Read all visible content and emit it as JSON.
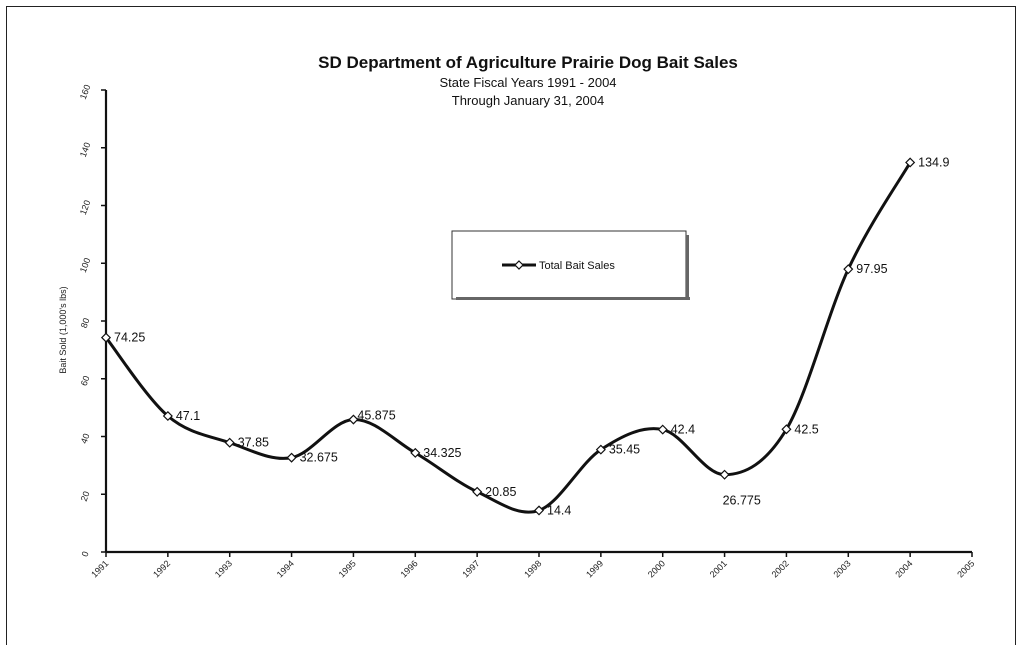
{
  "chart_data": {
    "type": "line",
    "title": "SD Department of Agriculture Prairie Dog Bait Sales",
    "subtitle_lines": [
      "State Fiscal Years 1991 - 2004",
      "Through January 31, 2004"
    ],
    "xlabel": "",
    "ylabel": "Bait Sold (1,000's lbs)",
    "x_ticks": [
      "1991",
      "1992",
      "1993",
      "1994",
      "1995",
      "1996",
      "1997",
      "1998",
      "1999",
      "2000",
      "2001",
      "2002",
      "2003",
      "2004",
      "2005"
    ],
    "y_ticks": [
      "0",
      "20",
      "40",
      "60",
      "80",
      "100",
      "120",
      "140",
      "160"
    ],
    "ylim": [
      0,
      160
    ],
    "grid": false,
    "legend": {
      "placement": "center",
      "entries": [
        "Total Bait Sales"
      ]
    },
    "series": [
      {
        "name": "Total Bait Sales",
        "x": [
          1991,
          1992,
          1993,
          1994,
          1995,
          1996,
          1997,
          1998,
          1999,
          2000,
          2001,
          2002,
          2003,
          2004
        ],
        "values": [
          74.25,
          47.1,
          37.85,
          32.675,
          45.875,
          34.325,
          20.85,
          14.4,
          35.45,
          42.4,
          26.775,
          42.5,
          97.95,
          134.9
        ],
        "labels": [
          "74.25",
          "47.1",
          "37.85",
          "32.675",
          "45.875",
          "34.325",
          "20.85",
          "14.4",
          "35.45",
          "42.4",
          "26.775",
          "42.5",
          "97.95",
          "134.9"
        ]
      }
    ]
  }
}
